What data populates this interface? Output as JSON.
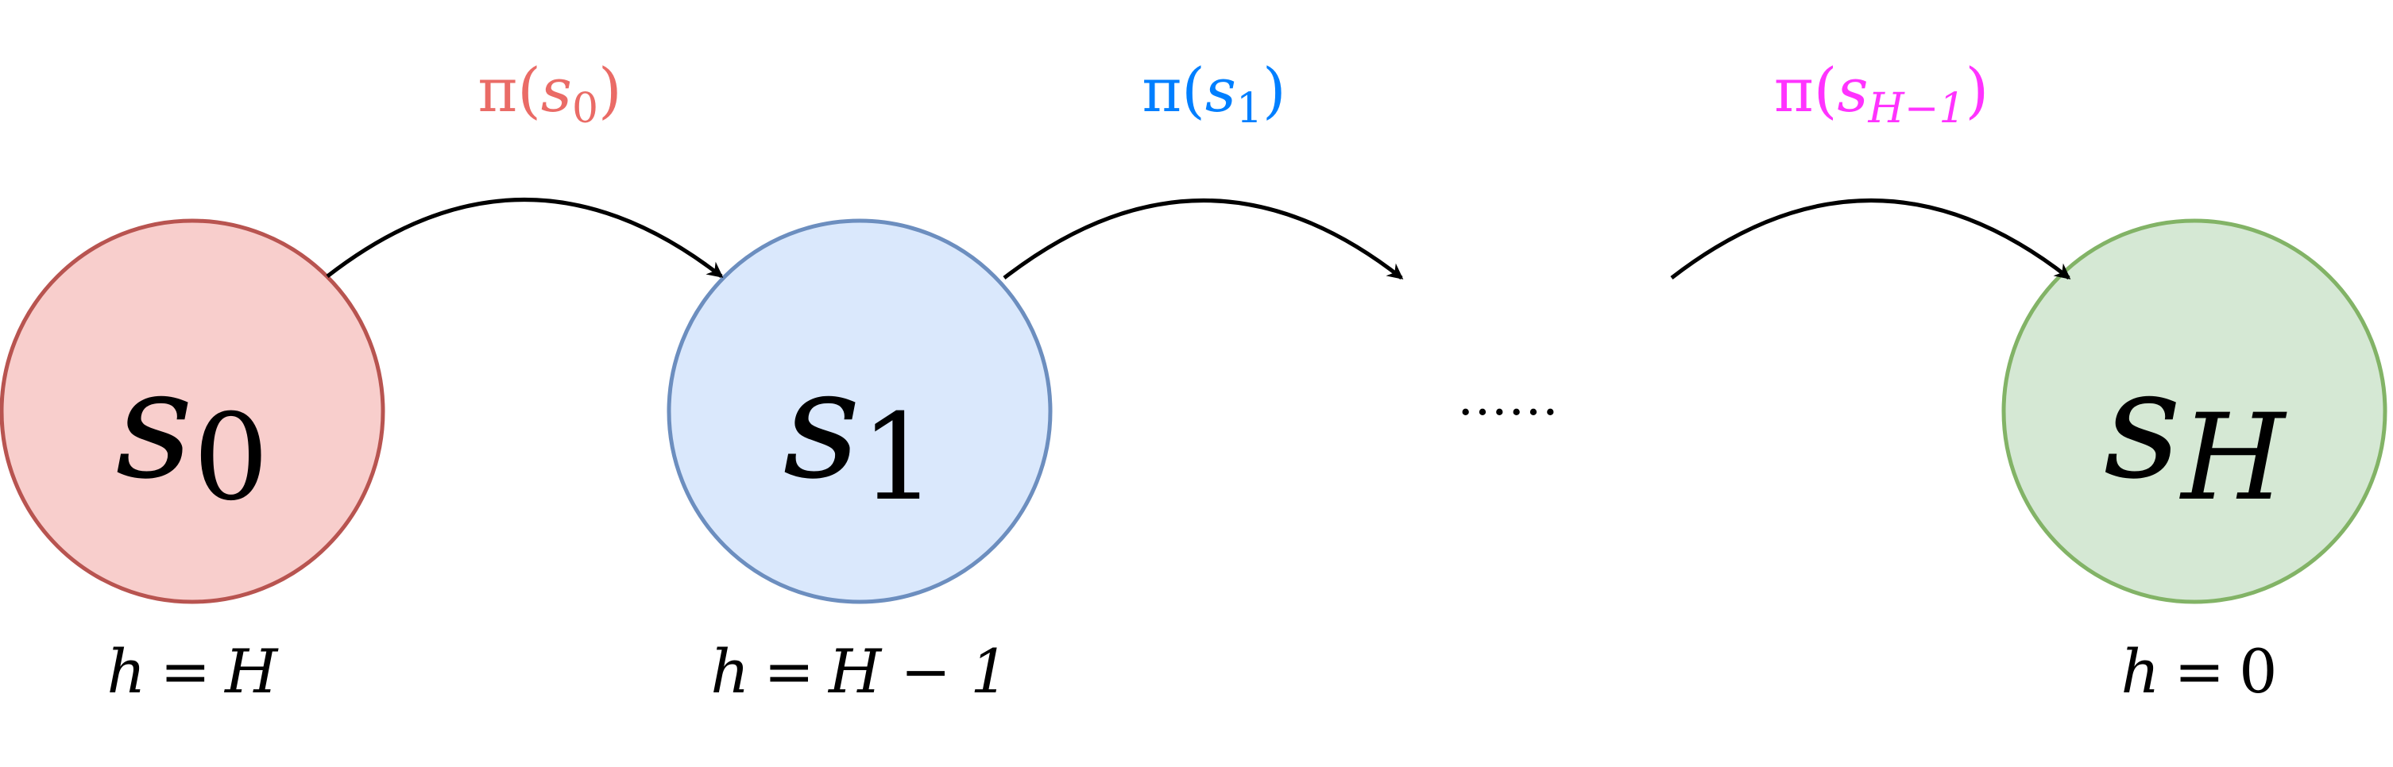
{
  "nodes": [
    {
      "id": "s0",
      "base": "s",
      "sub": "0",
      "sub_italic": false,
      "fill": "#f8cecc",
      "stroke": "#b85450"
    },
    {
      "id": "s1",
      "base": "s",
      "sub": "1",
      "sub_italic": false,
      "fill": "#dae8fc",
      "stroke": "#6c8ebf"
    },
    {
      "id": "sH",
      "base": "s",
      "sub": "H",
      "sub_italic": true,
      "fill": "#d5e8d4",
      "stroke": "#82b366"
    }
  ],
  "horizon_labels": [
    {
      "h": "h",
      "eq": "=",
      "rhs": "H"
    },
    {
      "h": "h",
      "eq": "=",
      "rhs": "H − 1"
    },
    {
      "h": "h",
      "eq": "=",
      "rhs": "0"
    }
  ],
  "actions": [
    {
      "pi": "π",
      "open": "(",
      "s": "s",
      "sub": "0",
      "close": ")",
      "color": "#ea6b66"
    },
    {
      "pi": "π",
      "open": "(",
      "s": "s",
      "sub": "1",
      "close": ")",
      "color": "#007fff"
    },
    {
      "pi": "π",
      "open": "(",
      "s": "s",
      "sub": "H−1",
      "close": ")",
      "color": "#ff33ff"
    }
  ],
  "ellipsis": "……"
}
